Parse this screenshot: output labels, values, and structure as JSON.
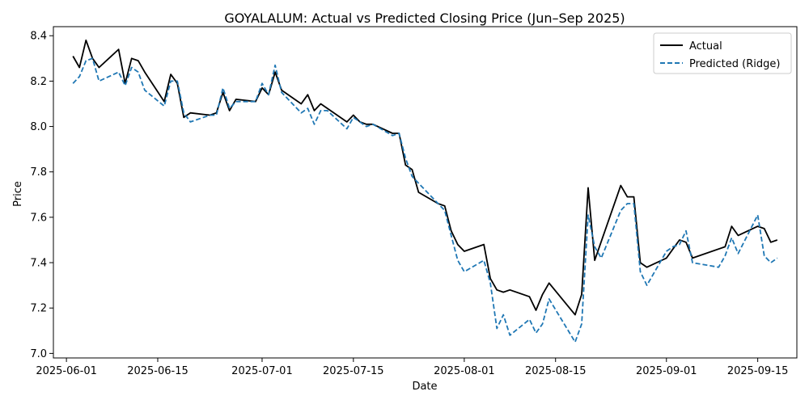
{
  "chart_data": {
    "type": "line",
    "title": "GOYALALUM: Actual vs Predicted Closing Price (Jun–Sep 2025)",
    "xlabel": "Date",
    "ylabel": "Price",
    "xlim": [
      "2025-05-30",
      "2025-09-21"
    ],
    "ylim": [
      6.98,
      8.44
    ],
    "x_ticks": [
      "2025-06-01",
      "2025-06-15",
      "2025-07-01",
      "2025-07-15",
      "2025-08-01",
      "2025-08-15",
      "2025-09-01",
      "2025-09-15"
    ],
    "y_ticks": [
      7.0,
      7.2,
      7.4,
      7.6,
      7.8,
      8.0,
      8.2,
      8.4
    ],
    "y_tick_labels": [
      "7.0",
      "7.2",
      "7.4",
      "7.6",
      "7.8",
      "8.0",
      "8.2",
      "8.4"
    ],
    "grid": false,
    "legend_position": "top-right",
    "series": [
      {
        "name": "Actual",
        "color": "#000000",
        "style": "solid",
        "points": [
          [
            "2025-06-02",
            8.31
          ],
          [
            "2025-06-03",
            8.26
          ],
          [
            "2025-06-04",
            8.38
          ],
          [
            "2025-06-05",
            8.3
          ],
          [
            "2025-06-06",
            8.26
          ],
          [
            "2025-06-09",
            8.34
          ],
          [
            "2025-06-10",
            8.19
          ],
          [
            "2025-06-11",
            8.3
          ],
          [
            "2025-06-12",
            8.29
          ],
          [
            "2025-06-13",
            8.24
          ],
          [
            "2025-06-16",
            8.11
          ],
          [
            "2025-06-17",
            8.23
          ],
          [
            "2025-06-18",
            8.19
          ],
          [
            "2025-06-19",
            8.04
          ],
          [
            "2025-06-20",
            8.06
          ],
          [
            "2025-06-23",
            8.05
          ],
          [
            "2025-06-24",
            8.06
          ],
          [
            "2025-06-25",
            8.15
          ],
          [
            "2025-06-26",
            8.07
          ],
          [
            "2025-06-27",
            8.12
          ],
          [
            "2025-06-30",
            8.11
          ],
          [
            "2025-07-01",
            8.17
          ],
          [
            "2025-07-02",
            8.14
          ],
          [
            "2025-07-03",
            8.24
          ],
          [
            "2025-07-04",
            8.16
          ],
          [
            "2025-07-07",
            8.1
          ],
          [
            "2025-07-08",
            8.14
          ],
          [
            "2025-07-09",
            8.07
          ],
          [
            "2025-07-10",
            8.1
          ],
          [
            "2025-07-11",
            8.08
          ],
          [
            "2025-07-14",
            8.02
          ],
          [
            "2025-07-15",
            8.05
          ],
          [
            "2025-07-16",
            8.02
          ],
          [
            "2025-07-17",
            8.01
          ],
          [
            "2025-07-18",
            8.01
          ],
          [
            "2025-07-21",
            7.97
          ],
          [
            "2025-07-22",
            7.97
          ],
          [
            "2025-07-23",
            7.83
          ],
          [
            "2025-07-24",
            7.81
          ],
          [
            "2025-07-25",
            7.71
          ],
          [
            "2025-07-28",
            7.66
          ],
          [
            "2025-07-29",
            7.65
          ],
          [
            "2025-07-30",
            7.54
          ],
          [
            "2025-07-31",
            7.48
          ],
          [
            "2025-08-01",
            7.45
          ],
          [
            "2025-08-04",
            7.48
          ],
          [
            "2025-08-05",
            7.33
          ],
          [
            "2025-08-06",
            7.28
          ],
          [
            "2025-08-07",
            7.27
          ],
          [
            "2025-08-08",
            7.28
          ],
          [
            "2025-08-11",
            7.25
          ],
          [
            "2025-08-12",
            7.19
          ],
          [
            "2025-08-13",
            7.26
          ],
          [
            "2025-08-14",
            7.31
          ],
          [
            "2025-08-18",
            7.17
          ],
          [
            "2025-08-19",
            7.26
          ],
          [
            "2025-08-20",
            7.73
          ],
          [
            "2025-08-21",
            7.41
          ],
          [
            "2025-08-25",
            7.74
          ],
          [
            "2025-08-26",
            7.69
          ],
          [
            "2025-08-27",
            7.69
          ],
          [
            "2025-08-28",
            7.4
          ],
          [
            "2025-08-29",
            7.38
          ],
          [
            "2025-09-01",
            7.42
          ],
          [
            "2025-09-02",
            7.46
          ],
          [
            "2025-09-03",
            7.5
          ],
          [
            "2025-09-04",
            7.49
          ],
          [
            "2025-09-05",
            7.42
          ],
          [
            "2025-09-10",
            7.47
          ],
          [
            "2025-09-11",
            7.56
          ],
          [
            "2025-09-12",
            7.52
          ],
          [
            "2025-09-15",
            7.56
          ],
          [
            "2025-09-16",
            7.55
          ],
          [
            "2025-09-17",
            7.49
          ],
          [
            "2025-09-18",
            7.5
          ]
        ]
      },
      {
        "name": "Predicted (Ridge)",
        "color": "#1f77b4",
        "style": "dashed",
        "points": [
          [
            "2025-06-02",
            8.19
          ],
          [
            "2025-06-03",
            8.22
          ],
          [
            "2025-06-04",
            8.29
          ],
          [
            "2025-06-05",
            8.3
          ],
          [
            "2025-06-06",
            8.2
          ],
          [
            "2025-06-09",
            8.24
          ],
          [
            "2025-06-10",
            8.18
          ],
          [
            "2025-06-11",
            8.26
          ],
          [
            "2025-06-12",
            8.24
          ],
          [
            "2025-06-13",
            8.16
          ],
          [
            "2025-06-16",
            8.09
          ],
          [
            "2025-06-17",
            8.2
          ],
          [
            "2025-06-18",
            8.2
          ],
          [
            "2025-06-19",
            8.06
          ],
          [
            "2025-06-20",
            8.02
          ],
          [
            "2025-06-23",
            8.05
          ],
          [
            "2025-06-24",
            8.05
          ],
          [
            "2025-06-25",
            8.17
          ],
          [
            "2025-06-26",
            8.08
          ],
          [
            "2025-06-27",
            8.11
          ],
          [
            "2025-06-30",
            8.11
          ],
          [
            "2025-07-01",
            8.19
          ],
          [
            "2025-07-02",
            8.14
          ],
          [
            "2025-07-03",
            8.27
          ],
          [
            "2025-07-04",
            8.15
          ],
          [
            "2025-07-07",
            8.06
          ],
          [
            "2025-07-08",
            8.08
          ],
          [
            "2025-07-09",
            8.01
          ],
          [
            "2025-07-10",
            8.07
          ],
          [
            "2025-07-11",
            8.07
          ],
          [
            "2025-07-14",
            7.99
          ],
          [
            "2025-07-15",
            8.04
          ],
          [
            "2025-07-16",
            8.02
          ],
          [
            "2025-07-17",
            8.0
          ],
          [
            "2025-07-18",
            8.01
          ],
          [
            "2025-07-21",
            7.96
          ],
          [
            "2025-07-22",
            7.97
          ],
          [
            "2025-07-23",
            7.86
          ],
          [
            "2025-07-24",
            7.78
          ],
          [
            "2025-07-25",
            7.75
          ],
          [
            "2025-07-28",
            7.66
          ],
          [
            "2025-07-29",
            7.63
          ],
          [
            "2025-07-30",
            7.52
          ],
          [
            "2025-07-31",
            7.41
          ],
          [
            "2025-08-01",
            7.36
          ],
          [
            "2025-08-04",
            7.41
          ],
          [
            "2025-08-05",
            7.31
          ],
          [
            "2025-08-06",
            7.11
          ],
          [
            "2025-08-07",
            7.17
          ],
          [
            "2025-08-08",
            7.08
          ],
          [
            "2025-08-11",
            7.15
          ],
          [
            "2025-08-12",
            7.09
          ],
          [
            "2025-08-13",
            7.13
          ],
          [
            "2025-08-14",
            7.24
          ],
          [
            "2025-08-18",
            7.05
          ],
          [
            "2025-08-19",
            7.13
          ],
          [
            "2025-08-20",
            7.61
          ],
          [
            "2025-08-21",
            7.47
          ],
          [
            "2025-08-22",
            7.42
          ],
          [
            "2025-08-25",
            7.63
          ],
          [
            "2025-08-26",
            7.66
          ],
          [
            "2025-08-27",
            7.66
          ],
          [
            "2025-08-28",
            7.36
          ],
          [
            "2025-08-29",
            7.3
          ],
          [
            "2025-09-01",
            7.45
          ],
          [
            "2025-09-02",
            7.47
          ],
          [
            "2025-09-03",
            7.48
          ],
          [
            "2025-09-04",
            7.54
          ],
          [
            "2025-09-05",
            7.4
          ],
          [
            "2025-09-09",
            7.38
          ],
          [
            "2025-09-10",
            7.43
          ],
          [
            "2025-09-11",
            7.51
          ],
          [
            "2025-09-12",
            7.44
          ],
          [
            "2025-09-15",
            7.61
          ],
          [
            "2025-09-16",
            7.43
          ],
          [
            "2025-09-17",
            7.4
          ],
          [
            "2025-09-18",
            7.42
          ]
        ]
      }
    ]
  }
}
